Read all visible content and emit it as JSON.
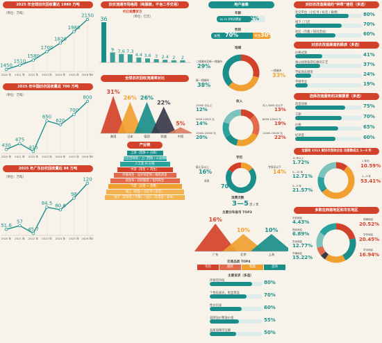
{
  "col1": {
    "charts": [
      {
        "title": "2025 年全球旧衣回收量达 1980 万吨",
        "unit": "（单位：万吨）",
        "categories": [
          "2020 年",
          "2021 年",
          "2022 年",
          "2023 年",
          "2024 年",
          "2025 年",
          "2026 年E"
        ],
        "values": [
          1450,
          1510,
          1580,
          1700,
          1820,
          1980,
          2150
        ],
        "labels": [
          "1450",
          "1510",
          "1580",
          "1700",
          "1820",
          "1980",
          "2150"
        ]
      },
      {
        "title": "2025 年中国旧衣回收量近 700 万吨",
        "unit": "（单位：万吨）",
        "categories": [
          "2020 年",
          "2021 年",
          "2022 年",
          "2023 年",
          "2024 年",
          "2025 年",
          "2026 年E"
        ],
        "values": [
          430,
          475,
          415,
          650,
          620,
          700,
          800
        ],
        "labels": [
          "430",
          "475",
          "415",
          "650",
          "620",
          "700",
          "800"
        ]
      },
      {
        "title": "2025 年广东旧衣回收量近 98 万吨",
        "unit": "（单位：万吨）",
        "categories": [
          "2020 年",
          "2021 年",
          "2022 年",
          "2023 年",
          "2024 年",
          "2025 年",
          "2026 年E"
        ],
        "values": [
          51.6,
          57,
          45.7,
          84.5,
          80.6,
          98,
          120
        ],
        "labels": [
          "51.6",
          "57",
          "45.7",
          "84.5",
          "80.6",
          "98",
          "120"
        ]
      }
    ]
  },
  "col2": {
    "bar": {
      "title": "旧衣流通市场格局（纯服装，不含二手交易）",
      "subtitle": "约亿级需求方",
      "unit": "（单位：亿元）",
      "values": [
        36,
        9,
        7.6,
        7.3,
        4.4,
        3.6,
        3,
        2.4,
        2,
        2
      ],
      "labels": [
        "36",
        "9",
        "7.6",
        "7.3",
        "4.4",
        "3.6",
        "3",
        "2.4",
        "2",
        "2"
      ]
    },
    "tri": {
      "title": "全球旧衣回收流通率对比",
      "categories": [
        "美国",
        "日本",
        "德国",
        "欧盟",
        "中国"
      ],
      "values": [
        31,
        26,
        26,
        22,
        5
      ],
      "labels": [
        "31%",
        "26%",
        "26%",
        "22%",
        "5%"
      ]
    },
    "pyr": {
      "title": "产业链",
      "layers": [
        "上游（回收 + 分拣）",
        "社区回收箱 / 上门回收 / 公益捐赠",
        "人工及 AI 分拣",
        "中游（再生 + 再生）",
        "纤维再生 · 设计师定制 / 服装改造",
        "再生布 · 纺织服装 / 化纤再生",
        "下游（交易 + 消费）",
        "线上（闲鱼 / 小红书 / 抖音）",
        "线下（实体店 / 市集）/ 出口（东南亚 / 非洲）"
      ]
    }
  },
  "col3": {
    "title": "用户画像",
    "age": {
      "title": "年龄",
      "text": "18-35 岁的消费者",
      "value": "72%"
    },
    "gender": {
      "title": "性别",
      "female": "女性",
      "female_v": "70%",
      "male": "男性",
      "male_v": "30%"
    },
    "region": {
      "title": "地域",
      "left": [
        "二线城市及新一线城市",
        "新一线城市"
      ],
      "left_v": [
        "29%",
        "38%"
      ],
      "right": "一线城市",
      "right_v": "33%"
    },
    "income": {
      "title": "收入",
      "left": [
        "15000 元以上",
        "5000-15000 元",
        "15000-25000 元"
      ],
      "left_v": [
        "12%",
        "14%",
        "20%"
      ],
      "right": [
        "月入 8000 元以下",
        "8000-12000 元",
        "12000-15000 元"
      ],
      "right_v": [
        "13%",
        "19%",
        "22%"
      ]
    },
    "edu": {
      "title": "学历",
      "left": "硕士及以上",
      "left_v": "16%",
      "left2": "本科",
      "left2_v": "70%",
      "right": "专科及以下",
      "right_v": "14%"
    },
    "freq": {
      "title": "消费次数",
      "value": "3—5",
      "unit": "次 / 年"
    },
    "tri": {
      "title": "主要分布省市 TOP3",
      "categories": [
        "广东",
        "北京",
        "上海"
      ],
      "values": [
        16,
        10,
        10
      ],
      "labels": [
        "16%",
        "10%",
        "10%"
      ]
    },
    "top4": {
      "title": "交易品类 TOP4",
      "items": [
        "包包",
        "服装",
        "鞋履",
        "首饰"
      ]
    },
    "bars": {
      "title": "主要诉求（多选）",
      "labels": [
        "环保可持续",
        "个性化表达，彰显审美",
        "性价比高",
        "品牌溢价释放价值",
        "品质保障可信赖"
      ],
      "values": [
        80,
        70,
        60,
        55,
        50
      ],
      "vlabels": [
        "80%",
        "70%",
        "60%",
        "55%",
        "50%"
      ]
    }
  },
  "col4": {
    "b1": {
      "title": "对旧衣改造渠道的“种草”途径（多选）",
      "labels": [
        "社交平台（小红书 / 抖音 / 微博）",
        "线下 / 门店",
        "社区（市集 / 快闪活动）"
      ],
      "values": [
        80,
        70,
        60
      ],
      "vlabels": [
        "80%",
        "70%",
        "60%"
      ]
    },
    "b2": {
      "title": "对旧衣改造渠道的顾虑（多选）",
      "labels": [
        "价格过高",
        "难以找到值得信赖的工艺",
        "不知道去哪里",
        "不够专业"
      ],
      "values": [
        41,
        37,
        24,
        19
      ],
      "vlabels": [
        "41%",
        "37%",
        "24%",
        "19%"
      ]
    },
    "b3": {
      "title": "选择改造服务的决策要素（多选）",
      "labels": [
        "改造效果",
        "工期",
        "价格",
        "好评度"
      ],
      "values": [
        75,
        70,
        65,
        60
      ],
      "vlabels": [
        "75%",
        "70%",
        "65%",
        "60%"
      ]
    },
    "donut1": {
      "title": "全国有 1511 家旧衣回收企业 注册数成立 1—3 年",
      "left": [
        "10 年以上",
        "5—10 年",
        "3—5 年"
      ],
      "left_v": [
        "1.72%",
        "12.71%",
        "21.57%"
      ],
      "right": [
        "1 年内",
        "1—3 年"
      ],
      "right_v": [
        "10.59%",
        "53.41%"
      ]
    },
    "donut2": {
      "title": "多数在西南地区和华东地区",
      "left": [
        "华北地区",
        "西北地区",
        "东北地区",
        "华南地区"
      ],
      "left_v": [
        "4.43%",
        "6.89%",
        "12.77%",
        "15.22%"
      ],
      "right": [
        "西南地区",
        "华东地区",
        "华中地区"
      ],
      "right_v": [
        "20.52%",
        "20.45%",
        "16.94%"
      ]
    }
  }
}
